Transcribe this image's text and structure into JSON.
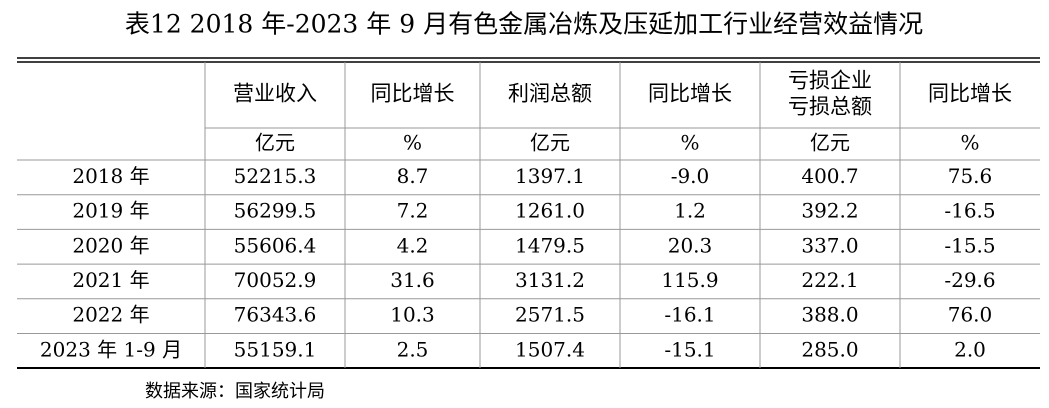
{
  "title": "表12   2018 年-2023 年 9 月有色金属冶炼及压延加工行业经营效益情况",
  "columns": [
    {
      "name": [
        "营业收入"
      ],
      "unit": "亿元"
    },
    {
      "name": [
        "同比增长"
      ],
      "unit": "%"
    },
    {
      "name": [
        "利润总额"
      ],
      "unit": "亿元"
    },
    {
      "name": [
        "同比增长"
      ],
      "unit": "%"
    },
    {
      "name": [
        "亏损企业",
        "亏损总额"
      ],
      "unit": "亿元"
    },
    {
      "name": [
        "同比增长"
      ],
      "unit": "%"
    }
  ],
  "rows": [
    {
      "label": "2018 年",
      "cells": [
        "52215.3",
        "8.7",
        "1397.1",
        "-9.0",
        "400.7",
        "75.6"
      ]
    },
    {
      "label": "2019 年",
      "cells": [
        "56299.5",
        "7.2",
        "1261.0",
        "1.2",
        "392.2",
        "-16.5"
      ]
    },
    {
      "label": "2020 年",
      "cells": [
        "55606.4",
        "4.2",
        "1479.5",
        "20.3",
        "337.0",
        "-15.5"
      ]
    },
    {
      "label": "2021 年",
      "cells": [
        "70052.9",
        "31.6",
        "3131.2",
        "115.9",
        "222.1",
        "-29.6"
      ]
    },
    {
      "label": "2022 年",
      "cells": [
        "76343.6",
        "10.3",
        "2571.5",
        "-16.1",
        "388.0",
        "76.0"
      ]
    },
    {
      "label": "2023 年 1-9 月",
      "cells": [
        "55159.1",
        "2.5",
        "1507.4",
        "-15.1",
        "285.0",
        "2.0"
      ]
    }
  ],
  "source": "数据来源：国家统计局"
}
